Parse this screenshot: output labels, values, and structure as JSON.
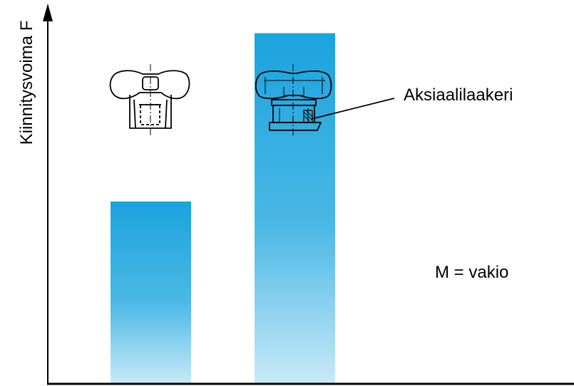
{
  "chart_data": {
    "type": "bar",
    "categories": [
      "",
      ""
    ],
    "values": [
      0.52,
      1.0
    ],
    "ylabel": "Kiinnitysvoima F",
    "xlabel": "",
    "ylim": [
      0,
      1.05
    ],
    "grid": false,
    "legend": "none",
    "annotations": {
      "bearing_label": "Aksiaalilaakeri",
      "constant_note": "M = vakio"
    }
  },
  "colors": {
    "bar_top": "#1aa3dd",
    "bar_bottom": "#c9e9f8",
    "axis": "#000000"
  },
  "icons": [
    "star-knob-icon",
    "star-knob-with-bearing-icon"
  ]
}
